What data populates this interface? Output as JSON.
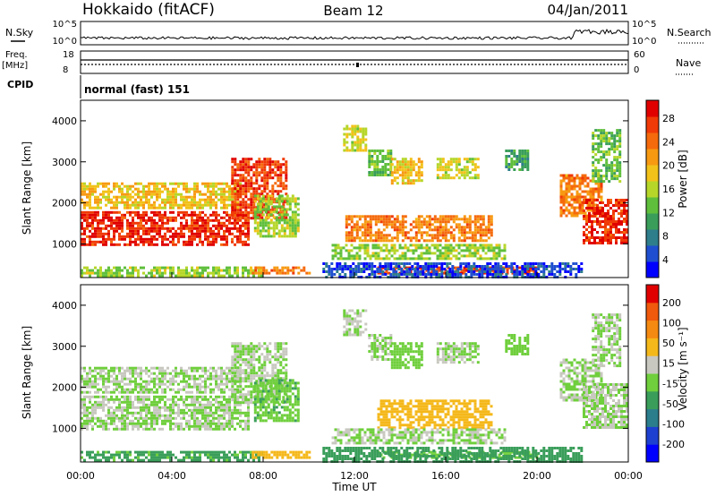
{
  "header": {
    "station": "Hokkaido (fitACF)",
    "beam": "Beam 12",
    "date": "04/Jan/2011"
  },
  "top_panels": {
    "nsky_label": "N.Sky",
    "nsky_ticks": [
      "10^5",
      "10^0"
    ],
    "nsearch_label": "N.Search",
    "nsearch_ticks": [
      "10^5",
      "10^0"
    ],
    "freq_label": "Freq.",
    "freq_unit": "[MHz]",
    "freq_ticks": [
      "18",
      "8"
    ],
    "nave_label": "Nave",
    "nave_ticks": [
      "60",
      "0"
    ],
    "cpid_label": "CPID",
    "cpid_text": "normal (fast) 151"
  },
  "colors": {
    "power_scale": [
      "#0000ff",
      "#1f4fd0",
      "#2e7e8c",
      "#3a9e5a",
      "#5fbf3c",
      "#b6d62a",
      "#f2c21a",
      "#f79a12",
      "#f56a0c",
      "#f03a07",
      "#e00000"
    ],
    "velocity_scale": [
      "#0000ff",
      "#1e40d0",
      "#2b7e8c",
      "#3a9e5a",
      "#6fcf3c",
      "#c8c8c0",
      "#f5b81a",
      "#f58a12",
      "#f05a0c",
      "#e00000"
    ]
  },
  "chart_data": [
    {
      "type": "heatmap",
      "name_key": "power",
      "ylabel": "Slant Range [km]",
      "xlabel": "",
      "xlim": [
        0,
        24
      ],
      "ylim": [
        180,
        4500
      ],
      "yticks": [
        "1000",
        "2000",
        "3000",
        "4000"
      ],
      "xticks": [
        "00:00",
        "04:00",
        "08:00",
        "12:00",
        "16:00",
        "20:00",
        "00:00"
      ],
      "colorbar": {
        "label": "Power [dB]",
        "ticks": [
          "28",
          "24",
          "20",
          "16",
          "12",
          "8",
          "4"
        ],
        "range": [
          0,
          30
        ]
      },
      "regions": [
        {
          "t0": 0.0,
          "t1": 7.4,
          "r0": 950,
          "r1": 1800,
          "value": 27
        },
        {
          "t0": 0.0,
          "t1": 7.0,
          "r0": 1900,
          "r1": 2500,
          "value": 18
        },
        {
          "t0": 6.6,
          "t1": 9.0,
          "r0": 1600,
          "r1": 3100,
          "value": 26
        },
        {
          "t0": 7.6,
          "t1": 9.6,
          "r0": 1200,
          "r1": 2200,
          "value": 14
        },
        {
          "t0": 0.0,
          "t1": 8.0,
          "r0": 250,
          "r1": 450,
          "value": 14
        },
        {
          "t0": 7.5,
          "t1": 10.0,
          "r0": 280,
          "r1": 450,
          "value": 22
        },
        {
          "t0": 13.0,
          "t1": 20.0,
          "r0": 280,
          "r1": 450,
          "value": 26
        },
        {
          "t0": 10.6,
          "t1": 22.0,
          "r0": 200,
          "r1": 550,
          "value": 4
        },
        {
          "t0": 11.6,
          "t1": 18.0,
          "r0": 1100,
          "r1": 1700,
          "value": 22
        },
        {
          "t0": 11.0,
          "t1": 18.6,
          "r0": 650,
          "r1": 1000,
          "value": 14
        },
        {
          "t0": 11.5,
          "t1": 12.5,
          "r0": 3300,
          "r1": 3900,
          "value": 16
        },
        {
          "t0": 12.6,
          "t1": 13.6,
          "r0": 2700,
          "r1": 3300,
          "value": 12
        },
        {
          "t0": 13.6,
          "t1": 15.0,
          "r0": 2500,
          "r1": 3100,
          "value": 18
        },
        {
          "t0": 15.6,
          "t1": 17.4,
          "r0": 2600,
          "r1": 3100,
          "value": 16
        },
        {
          "t0": 18.6,
          "t1": 19.6,
          "r0": 2800,
          "r1": 3300,
          "value": 10
        },
        {
          "t0": 21.0,
          "t1": 22.8,
          "r0": 1700,
          "r1": 2700,
          "value": 22
        },
        {
          "t0": 22.0,
          "t1": 24.0,
          "r0": 1000,
          "r1": 2100,
          "value": 27
        },
        {
          "t0": 22.4,
          "t1": 23.6,
          "r0": 2500,
          "r1": 3800,
          "value": 12
        }
      ]
    },
    {
      "type": "heatmap",
      "name_key": "velocity",
      "ylabel": "Slant Range [km]",
      "xlabel": "Time UT",
      "xlim": [
        0,
        24
      ],
      "ylim": [
        180,
        4500
      ],
      "yticks": [
        "1000",
        "2000",
        "3000",
        "4000"
      ],
      "xticks": [
        "00:00",
        "04:00",
        "08:00",
        "12:00",
        "16:00",
        "20:00",
        "00:00"
      ],
      "colorbar": {
        "label": "Velocity [m s⁻¹]",
        "ticks": [
          "200",
          "100",
          "50",
          "15",
          "-15",
          "-50",
          "-100",
          "-200"
        ],
        "range": [
          -250,
          250
        ]
      },
      "regions": [
        {
          "t0": 0.0,
          "t1": 7.4,
          "r0": 950,
          "r1": 1800,
          "value": 0
        },
        {
          "t0": 0.0,
          "t1": 7.0,
          "r0": 1900,
          "r1": 2500,
          "value": 0
        },
        {
          "t0": 6.6,
          "t1": 9.0,
          "r0": 1600,
          "r1": 3100,
          "value": 0
        },
        {
          "t0": 7.6,
          "t1": 9.6,
          "r0": 1200,
          "r1": 2200,
          "value": -40
        },
        {
          "t0": 0.0,
          "t1": 8.0,
          "r0": 250,
          "r1": 450,
          "value": -60
        },
        {
          "t0": 7.5,
          "t1": 10.0,
          "r0": 280,
          "r1": 450,
          "value": 70
        },
        {
          "t0": 13.0,
          "t1": 20.0,
          "r0": 280,
          "r1": 450,
          "value": -40
        },
        {
          "t0": 10.6,
          "t1": 22.0,
          "r0": 200,
          "r1": 550,
          "value": -80
        },
        {
          "t0": 13.0,
          "t1": 18.0,
          "r0": 1000,
          "r1": 1700,
          "value": 70
        },
        {
          "t0": 11.0,
          "t1": 18.6,
          "r0": 650,
          "r1": 1000,
          "value": 0
        },
        {
          "t0": 11.5,
          "t1": 12.5,
          "r0": 3300,
          "r1": 3900,
          "value": 0
        },
        {
          "t0": 12.6,
          "t1": 13.6,
          "r0": 2700,
          "r1": 3300,
          "value": 0
        },
        {
          "t0": 13.6,
          "t1": 15.0,
          "r0": 2500,
          "r1": 3100,
          "value": -30
        },
        {
          "t0": 15.6,
          "t1": 17.4,
          "r0": 2600,
          "r1": 3100,
          "value": 0
        },
        {
          "t0": 18.6,
          "t1": 19.6,
          "r0": 2800,
          "r1": 3300,
          "value": -20
        },
        {
          "t0": 21.0,
          "t1": 22.8,
          "r0": 1700,
          "r1": 2700,
          "value": 0
        },
        {
          "t0": 22.0,
          "t1": 24.0,
          "r0": 1000,
          "r1": 2100,
          "value": 0
        },
        {
          "t0": 22.4,
          "t1": 23.6,
          "r0": 2500,
          "r1": 3800,
          "value": 0
        }
      ]
    }
  ]
}
